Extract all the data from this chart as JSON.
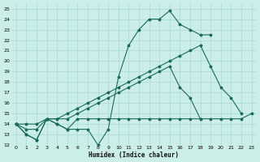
{
  "xlabel": "Humidex (Indice chaleur)",
  "bg_color": "#cceee8",
  "grid_color": "#aad8d2",
  "line_color": "#1a6b5a",
  "xlim": [
    -0.5,
    23.5
  ],
  "ylim": [
    12,
    25.5
  ],
  "xticks": [
    0,
    1,
    2,
    3,
    4,
    5,
    6,
    7,
    8,
    9,
    10,
    11,
    12,
    13,
    14,
    15,
    16,
    17,
    18,
    19,
    20,
    21,
    22,
    23
  ],
  "yticks": [
    12,
    13,
    14,
    15,
    16,
    17,
    18,
    19,
    20,
    21,
    22,
    23,
    24,
    25
  ],
  "lines": [
    {
      "x": [
        0,
        1,
        2,
        3,
        4,
        5,
        6,
        7,
        8,
        9,
        10,
        11,
        12,
        13,
        14,
        15,
        16,
        17,
        18,
        19
      ],
      "y": [
        14,
        13,
        12.5,
        14.5,
        14,
        13.5,
        13.5,
        13.5,
        12,
        13.5,
        18.5,
        21.5,
        23,
        24,
        24,
        24.8,
        23.5,
        23,
        22.5,
        22.5
      ]
    },
    {
      "x": [
        0,
        1,
        2,
        3,
        4,
        5,
        6,
        7,
        8,
        9,
        10,
        11,
        12,
        13,
        14,
        15,
        16,
        17,
        18,
        19,
        20,
        21,
        22,
        23
      ],
      "y": [
        14,
        13,
        12.5,
        14.5,
        14,
        13.5,
        14.5,
        14.5,
        14.5,
        14.5,
        14.5,
        14.5,
        14.5,
        14.5,
        14.5,
        14.5,
        14.5,
        14.5,
        14.5,
        14.5,
        14.5,
        14.5,
        14.5,
        15
      ]
    },
    {
      "x": [
        0,
        1,
        2,
        3,
        4,
        5,
        6,
        7,
        8,
        9,
        10,
        11,
        12,
        13,
        14,
        15,
        16,
        17,
        18,
        19,
        20,
        21,
        22
      ],
      "y": [
        14,
        14,
        14,
        14.5,
        14.5,
        15,
        15.5,
        16,
        16.5,
        17,
        17.5,
        18,
        18.5,
        19,
        19.5,
        20,
        20.5,
        21,
        21.5,
        19.5,
        17.5,
        16.5,
        15
      ]
    },
    {
      "x": [
        0,
        1,
        2,
        3,
        4,
        5,
        6,
        7,
        8,
        9,
        10,
        11,
        12,
        13,
        14,
        15,
        16,
        17,
        18
      ],
      "y": [
        14,
        13.5,
        13.5,
        14.5,
        14.5,
        14.5,
        15,
        15.5,
        16,
        16.5,
        17,
        17.5,
        18,
        18.5,
        19,
        19.5,
        17.5,
        16.5,
        14.5
      ]
    }
  ]
}
